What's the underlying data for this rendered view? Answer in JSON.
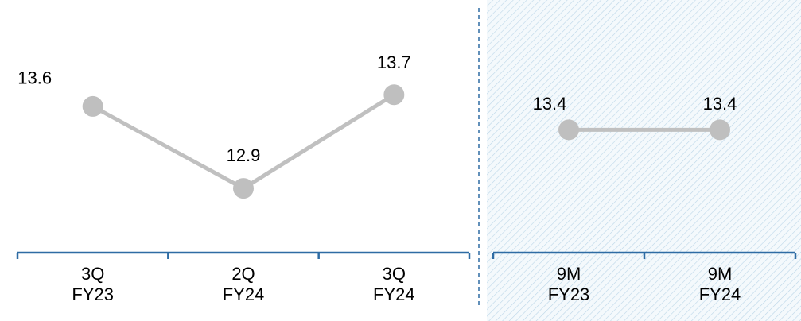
{
  "chart_data": [
    {
      "type": "line",
      "categories": [
        "3Q\nFY23",
        "2Q\nFY24",
        "3Q\nFY24"
      ],
      "values": [
        13.6,
        12.9,
        13.7
      ],
      "color": "#c0c0c0",
      "ylim": [
        12.5,
        14
      ]
    },
    {
      "type": "line",
      "categories": [
        "9M\nFY23",
        "9M\nFY24"
      ],
      "values": [
        13.4,
        13.4
      ],
      "color": "#c0c0c0",
      "ylim": [
        12.5,
        14
      ]
    }
  ]
}
